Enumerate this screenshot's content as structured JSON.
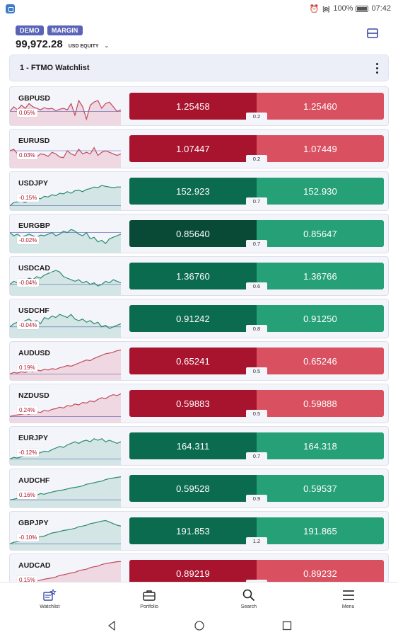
{
  "status": {
    "battery": "100%",
    "time": "07:42"
  },
  "account": {
    "badge_demo": "DEMO",
    "badge_margin": "MARGIN",
    "equity": "99,972.28",
    "equity_label": "USD EQUITY"
  },
  "watchlist": {
    "title": "1 - FTMO Watchlist"
  },
  "colors": {
    "red_bid": "#a8132e",
    "red_ask": "#d95060",
    "green_bid": "#0b6b4e",
    "green_ask": "#25a077",
    "green_dark_bid": "#084a36"
  },
  "rows": [
    {
      "symbol": "GBPUSD",
      "change": "0.05%",
      "bid": "1.25458",
      "ask": "1.25460",
      "spread": "0.2",
      "trend": "up",
      "spark": [
        0.6,
        0.45,
        0.55,
        0.4,
        0.5,
        0.35,
        0.45,
        0.5,
        0.55,
        0.48,
        0.52,
        0.5,
        0.58,
        0.53,
        0.5,
        0.55,
        0.35,
        0.72,
        0.25,
        0.45,
        0.85,
        0.4,
        0.3,
        0.25,
        0.5,
        0.35,
        0.3,
        0.45,
        0.6,
        0.55
      ]
    },
    {
      "symbol": "EURUSD",
      "change": "0.03%",
      "bid": "1.07447",
      "ask": "1.07449",
      "spread": "0.2",
      "trend": "up",
      "spark": [
        0.5,
        0.45,
        0.6,
        0.55,
        0.62,
        0.58,
        0.65,
        0.7,
        0.6,
        0.62,
        0.68,
        0.55,
        0.6,
        0.7,
        0.72,
        0.5,
        0.6,
        0.65,
        0.45,
        0.6,
        0.55,
        0.6,
        0.4,
        0.65,
        0.55,
        0.5,
        0.55,
        0.6,
        0.65,
        0.6
      ]
    },
    {
      "symbol": "USDJPY",
      "change": "-0.15%",
      "bid": "152.923",
      "ask": "152.930",
      "spread": "0.7",
      "trend": "down",
      "spark": [
        0.9,
        0.8,
        0.78,
        0.75,
        0.8,
        0.72,
        0.7,
        0.65,
        0.68,
        0.6,
        0.62,
        0.55,
        0.58,
        0.5,
        0.52,
        0.45,
        0.5,
        0.42,
        0.4,
        0.45,
        0.38,
        0.35,
        0.3,
        0.32,
        0.25,
        0.28,
        0.3,
        0.32,
        0.3,
        0.3
      ]
    },
    {
      "symbol": "EURGBP",
      "change": "-0.02%",
      "bid": "0.85640",
      "ask": "0.85647",
      "spread": "0.7",
      "trend": "down",
      "spark": [
        0.4,
        0.5,
        0.45,
        0.55,
        0.5,
        0.45,
        0.5,
        0.55,
        0.48,
        0.5,
        0.45,
        0.4,
        0.5,
        0.45,
        0.35,
        0.4,
        0.3,
        0.35,
        0.45,
        0.5,
        0.4,
        0.6,
        0.55,
        0.7,
        0.65,
        0.75,
        0.6,
        0.55,
        0.5,
        0.45
      ]
    },
    {
      "symbol": "USDCAD",
      "change": "-0.04%",
      "bid": "1.36760",
      "ask": "1.36766",
      "spread": "0.6",
      "trend": "down",
      "spark": [
        0.7,
        0.6,
        0.65,
        0.55,
        0.6,
        0.5,
        0.55,
        0.45,
        0.5,
        0.4,
        0.35,
        0.3,
        0.25,
        0.3,
        0.45,
        0.5,
        0.55,
        0.6,
        0.55,
        0.65,
        0.6,
        0.7,
        0.65,
        0.75,
        0.7,
        0.6,
        0.65,
        0.55,
        0.6,
        0.65
      ]
    },
    {
      "symbol": "USDCHF",
      "change": "-0.04%",
      "bid": "0.91242",
      "ask": "0.91250",
      "spread": "0.8",
      "trend": "down",
      "spark": [
        0.7,
        0.6,
        0.55,
        0.6,
        0.5,
        0.45,
        0.55,
        0.5,
        0.6,
        0.4,
        0.45,
        0.35,
        0.4,
        0.3,
        0.35,
        0.4,
        0.3,
        0.45,
        0.5,
        0.45,
        0.55,
        0.5,
        0.6,
        0.55,
        0.7,
        0.65,
        0.75,
        0.7,
        0.65,
        0.6
      ]
    },
    {
      "symbol": "AUDUSD",
      "change": "0.19%",
      "bid": "0.65241",
      "ask": "0.65246",
      "spread": "0.5",
      "trend": "up",
      "spark": [
        0.85,
        0.8,
        0.82,
        0.78,
        0.8,
        0.75,
        0.78,
        0.72,
        0.75,
        0.7,
        0.72,
        0.68,
        0.7,
        0.65,
        0.62,
        0.58,
        0.6,
        0.55,
        0.5,
        0.45,
        0.4,
        0.42,
        0.35,
        0.3,
        0.25,
        0.2,
        0.18,
        0.15,
        0.1,
        0.08
      ]
    },
    {
      "symbol": "NZDUSD",
      "change": "0.24%",
      "bid": "0.59883",
      "ask": "0.59888",
      "spread": "0.5",
      "trend": "up",
      "spark": [
        0.85,
        0.82,
        0.8,
        0.78,
        0.75,
        0.78,
        0.72,
        0.7,
        0.72,
        0.65,
        0.68,
        0.62,
        0.6,
        0.55,
        0.58,
        0.5,
        0.52,
        0.45,
        0.48,
        0.4,
        0.42,
        0.35,
        0.38,
        0.3,
        0.25,
        0.28,
        0.2,
        0.15,
        0.18,
        0.12
      ]
    },
    {
      "symbol": "EURJPY",
      "change": "-0.12%",
      "bid": "164.311",
      "ask": "164.318",
      "spread": "0.7",
      "trend": "down",
      "spark": [
        0.85,
        0.8,
        0.82,
        0.78,
        0.75,
        0.7,
        0.72,
        0.68,
        0.65,
        0.6,
        0.62,
        0.55,
        0.5,
        0.45,
        0.48,
        0.4,
        0.35,
        0.3,
        0.35,
        0.28,
        0.25,
        0.3,
        0.2,
        0.25,
        0.2,
        0.3,
        0.25,
        0.3,
        0.35,
        0.3
      ]
    },
    {
      "symbol": "AUDCHF",
      "change": "0.16%",
      "bid": "0.59528",
      "ask": "0.59537",
      "spread": "0.9",
      "trend": "up",
      "spark": [
        0.8,
        0.78,
        0.75,
        0.72,
        0.7,
        0.68,
        0.72,
        0.65,
        0.6,
        0.62,
        0.58,
        0.55,
        0.52,
        0.5,
        0.48,
        0.45,
        0.42,
        0.4,
        0.38,
        0.35,
        0.3,
        0.28,
        0.25,
        0.22,
        0.2,
        0.15,
        0.12,
        0.1,
        0.08,
        0.06
      ]
    },
    {
      "symbol": "GBPJPY",
      "change": "-0.10%",
      "bid": "191.853",
      "ask": "191.865",
      "spread": "1.2",
      "trend": "down",
      "spark": [
        0.85,
        0.8,
        0.78,
        0.75,
        0.72,
        0.7,
        0.68,
        0.65,
        0.62,
        0.6,
        0.55,
        0.5,
        0.48,
        0.45,
        0.42,
        0.4,
        0.38,
        0.35,
        0.3,
        0.28,
        0.25,
        0.2,
        0.18,
        0.15,
        0.12,
        0.1,
        0.15,
        0.2,
        0.25,
        0.28
      ]
    },
    {
      "symbol": "AUDCAD",
      "change": "0.15%",
      "bid": "0.89219",
      "ask": "0.89232",
      "spread": "1.3",
      "trend": "up",
      "spark": [
        0.85,
        0.82,
        0.8,
        0.78,
        0.75,
        0.72,
        0.7,
        0.68,
        0.65,
        0.62,
        0.6,
        0.58,
        0.55,
        0.5,
        0.48,
        0.45,
        0.42,
        0.4,
        0.35,
        0.32,
        0.3,
        0.25,
        0.22,
        0.2,
        0.15,
        0.12,
        0.1,
        0.08,
        0.06,
        0.05
      ]
    }
  ],
  "row_styles": [
    "red",
    "red",
    "green",
    "greendark",
    "green",
    "green",
    "red",
    "red",
    "green",
    "green",
    "green",
    "red"
  ],
  "nav": {
    "watchlist": "Watchlist",
    "portfolio": "Portfolio",
    "search": "Search",
    "menu": "Menu"
  }
}
